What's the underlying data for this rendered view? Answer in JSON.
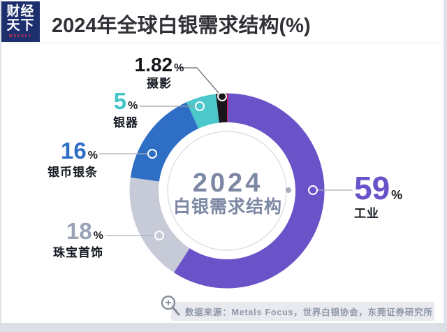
{
  "header": {
    "logo": {
      "line1": "财经",
      "line2": "天下",
      "tagline": "WEEKLY"
    },
    "title": "2024年全球白银需求结构(%)"
  },
  "donut_center": {
    "year": "2024",
    "caption": "白银需求结构"
  },
  "callouts": {
    "industry": {
      "value": "59",
      "unit": "%",
      "name": "工业",
      "color": "#6a52c9"
    },
    "jewelry": {
      "value": "18",
      "unit": "%",
      "name": "珠宝首饰",
      "color": "#9aa4b6"
    },
    "coins_bars": {
      "value": "16",
      "unit": "%",
      "name": "银币银条",
      "color": "#2e6ec5"
    },
    "silverware": {
      "value": "5",
      "unit": "%",
      "name": "银器",
      "color": "#41c5c9"
    },
    "photography": {
      "value": "1.82",
      "unit": "%",
      "name": "摄影",
      "color": "#17171b"
    }
  },
  "source": {
    "label": "数据来源：Metals Focus，世界白银协会，东莞证券研究所"
  },
  "chart_data": {
    "type": "pie",
    "donut": true,
    "title": "2024年全球白银需求结构(%)",
    "center_label": [
      "2024",
      "白银需求结构"
    ],
    "unit": "%",
    "start_angle_deg": 0,
    "direction": "clockwise",
    "legend_position": "callout-labels",
    "segments": [
      {
        "label": "",
        "value": 0.18,
        "color": "#d8104d"
      },
      {
        "label": "工业",
        "value": 59,
        "color": "#6a52c9"
      },
      {
        "label": "珠宝首饰",
        "value": 18,
        "color": "#c6cbd7"
      },
      {
        "label": "银币银条",
        "value": 16,
        "color": "#2e6ec5"
      },
      {
        "label": "银器",
        "value": 5,
        "color": "#4cc7ca"
      },
      {
        "label": "摄影",
        "value": 1.82,
        "color": "#17171b"
      }
    ],
    "source": "数据来源：Metals Focus，世界白银协会，东莞证券研究所"
  }
}
